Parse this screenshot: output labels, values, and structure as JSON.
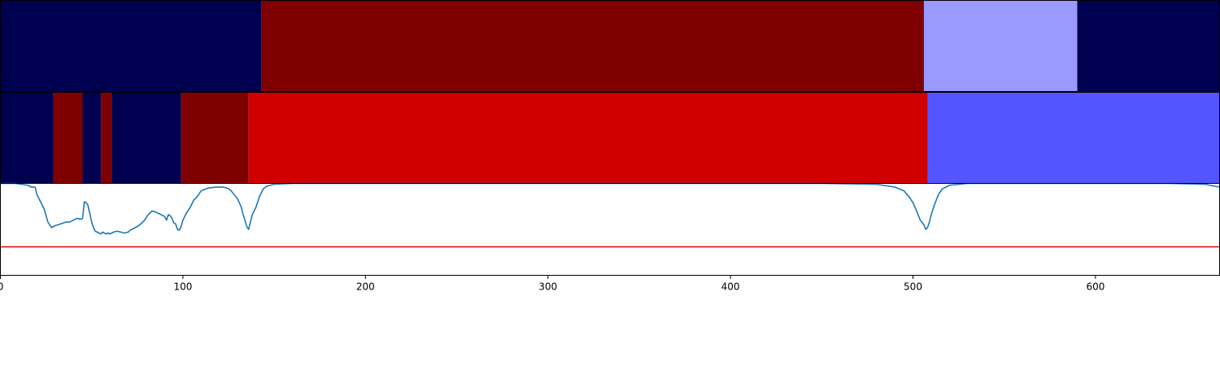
{
  "chart_data": {
    "type": "segmentation-timeline",
    "xlim": [
      0,
      668
    ],
    "x_ticks": [
      0,
      100,
      200,
      300,
      400,
      500,
      600
    ],
    "grid": false,
    "legend": "none",
    "tracks": [
      {
        "segments": [
          {
            "start": 0,
            "end": 143,
            "color": "#000050"
          },
          {
            "start": 143,
            "end": 506,
            "color": "#800000"
          },
          {
            "start": 506,
            "end": 590,
            "color": "#9999ff"
          },
          {
            "start": 590,
            "end": 668,
            "color": "#000050"
          }
        ]
      },
      {
        "segments": [
          {
            "start": 0,
            "end": 29,
            "color": "#000050"
          },
          {
            "start": 29,
            "end": 45,
            "color": "#800000"
          },
          {
            "start": 45,
            "end": 55,
            "color": "#000050"
          },
          {
            "start": 55,
            "end": 61,
            "color": "#800000"
          },
          {
            "start": 61,
            "end": 99,
            "color": "#000050"
          },
          {
            "start": 99,
            "end": 136,
            "color": "#800000"
          },
          {
            "start": 136,
            "end": 508,
            "color": "#d00000"
          },
          {
            "start": 508,
            "end": 668,
            "color": "#5555ff"
          }
        ]
      }
    ],
    "line_panel": {
      "ylim": [
        0,
        1
      ],
      "threshold": {
        "y": 0.31,
        "color": "#dd0000"
      },
      "line_color": "#1f77b4",
      "x": [
        0,
        8,
        15,
        17,
        19,
        20,
        21,
        22,
        24,
        26,
        28,
        29,
        30,
        33,
        36,
        38,
        40,
        42,
        44,
        45,
        46,
        47,
        48,
        50,
        51,
        52,
        53,
        55,
        56,
        58,
        59,
        60,
        62,
        64,
        66,
        68,
        70,
        71,
        73,
        75,
        77,
        79,
        81,
        83,
        85,
        87,
        88,
        89,
        90,
        91,
        92,
        93,
        94,
        95,
        96,
        97,
        98,
        99,
        100,
        102,
        104,
        106,
        108,
        110,
        114,
        118,
        122,
        124,
        126,
        128,
        130,
        132,
        133,
        134,
        135,
        136,
        137,
        138,
        140,
        142,
        144,
        146,
        150,
        160,
        180,
        250,
        350,
        450,
        480,
        490,
        495,
        498,
        500,
        502,
        504,
        506,
        507,
        508,
        509,
        510,
        512,
        514,
        516,
        520,
        530,
        560,
        600,
        640,
        660,
        668
      ],
      "y": [
        1.0,
        1.0,
        0.98,
        0.96,
        0.96,
        0.88,
        0.84,
        0.8,
        0.72,
        0.58,
        0.52,
        0.53,
        0.54,
        0.56,
        0.58,
        0.58,
        0.6,
        0.62,
        0.61,
        0.62,
        0.8,
        0.79,
        0.76,
        0.58,
        0.52,
        0.48,
        0.47,
        0.45,
        0.47,
        0.45,
        0.46,
        0.45,
        0.47,
        0.48,
        0.47,
        0.46,
        0.47,
        0.49,
        0.51,
        0.53,
        0.56,
        0.6,
        0.66,
        0.7,
        0.69,
        0.67,
        0.66,
        0.65,
        0.64,
        0.6,
        0.66,
        0.65,
        0.62,
        0.57,
        0.56,
        0.5,
        0.49,
        0.53,
        0.6,
        0.68,
        0.74,
        0.82,
        0.86,
        0.92,
        0.95,
        0.96,
        0.96,
        0.95,
        0.93,
        0.88,
        0.83,
        0.74,
        0.66,
        0.6,
        0.53,
        0.5,
        0.58,
        0.66,
        0.74,
        0.86,
        0.94,
        0.97,
        0.99,
        1.0,
        1.0,
        1.0,
        1.0,
        1.0,
        0.99,
        0.96,
        0.92,
        0.85,
        0.79,
        0.7,
        0.6,
        0.55,
        0.5,
        0.52,
        0.58,
        0.66,
        0.78,
        0.88,
        0.94,
        0.98,
        1.0,
        1.0,
        1.0,
        1.0,
        0.99,
        0.96
      ]
    }
  }
}
